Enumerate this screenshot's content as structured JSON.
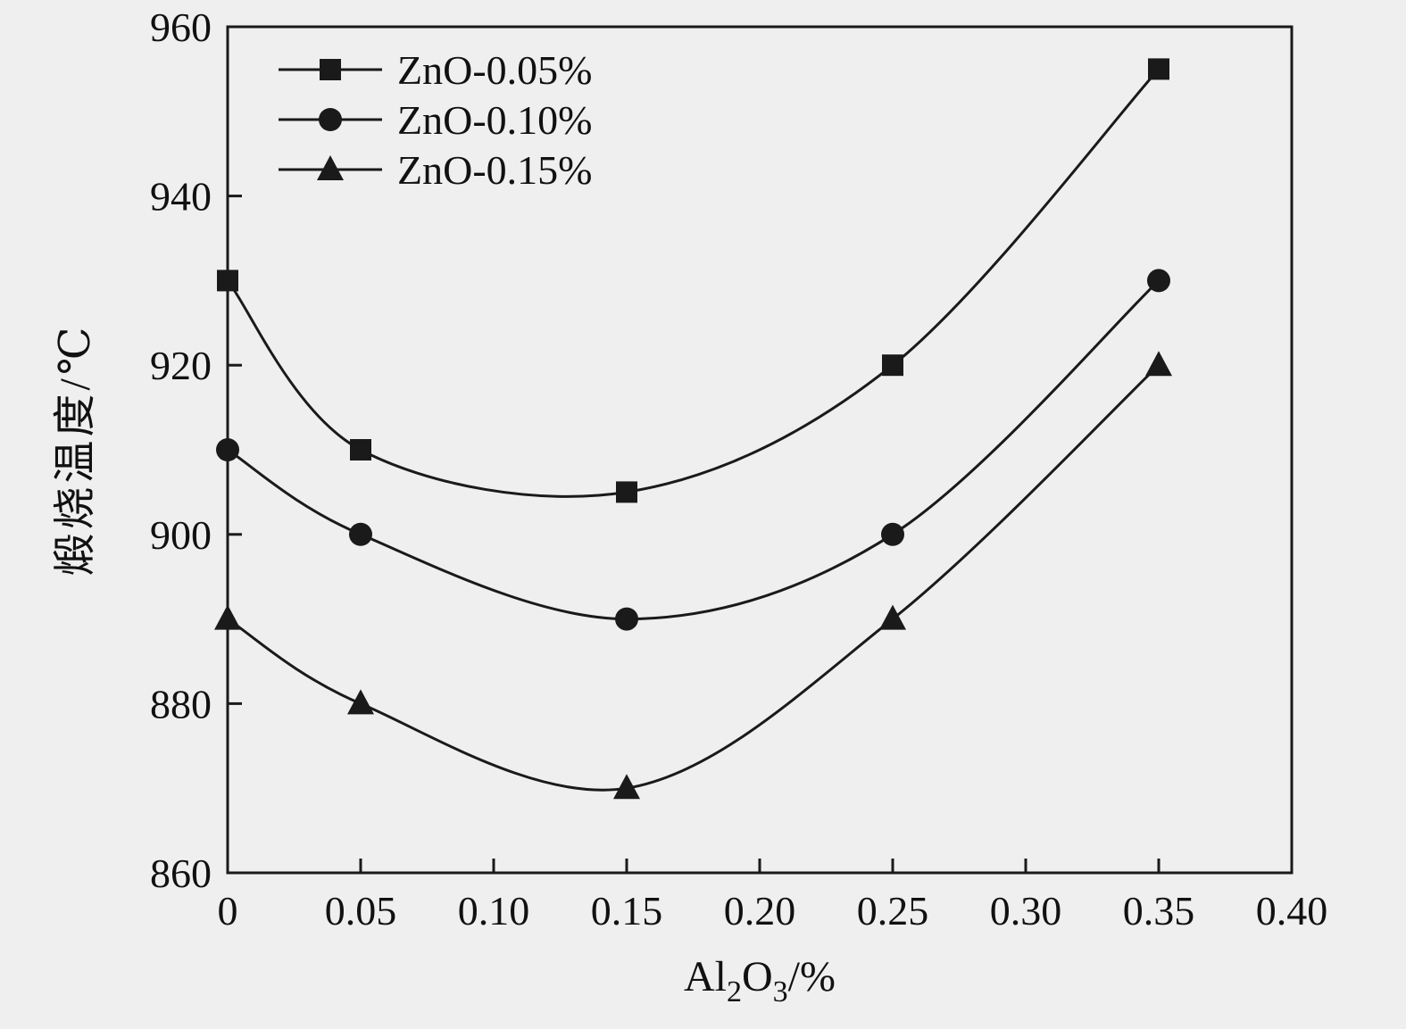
{
  "figure": {
    "background_color": "#efefef",
    "line_color": "#1a1a1a",
    "tick_font_size": 46,
    "legend_font_size": 46,
    "axis_title_font_size": 48
  },
  "chart_data": {
    "type": "line",
    "title": "",
    "xlabel": "Al₂O₃/%",
    "xlabel_parts": [
      {
        "text": "Al",
        "subscript": false
      },
      {
        "text": "2",
        "subscript": true
      },
      {
        "text": "O",
        "subscript": false
      },
      {
        "text": "3",
        "subscript": true
      },
      {
        "text": "/%",
        "subscript": false
      }
    ],
    "ylabel": "煅烧温度/℃",
    "xlim": [
      0,
      0.4
    ],
    "ylim": [
      860,
      960
    ],
    "x_tick_labels": [
      "0",
      "0.05",
      "0.10",
      "0.15",
      "0.20",
      "0.25",
      "0.30",
      "0.35",
      "0.40"
    ],
    "x_tick_values": [
      0,
      0.05,
      0.1,
      0.15,
      0.2,
      0.25,
      0.3,
      0.35,
      0.4
    ],
    "y_tick_labels": [
      "860",
      "880",
      "900",
      "920",
      "940",
      "960"
    ],
    "y_tick_values": [
      860,
      880,
      900,
      920,
      940,
      960
    ],
    "x": [
      0,
      0.05,
      0.15,
      0.25,
      0.35
    ],
    "series": [
      {
        "name": "ZnO-0.05%",
        "marker": "square",
        "values": [
          930,
          910,
          905,
          920,
          955
        ]
      },
      {
        "name": "ZnO-0.10%",
        "marker": "circle",
        "values": [
          910,
          900,
          890,
          900,
          930
        ]
      },
      {
        "name": "ZnO-0.15%",
        "marker": "triangle",
        "values": [
          890,
          880,
          870,
          890,
          920
        ]
      }
    ],
    "legend_position": "top-left",
    "grid": false
  }
}
